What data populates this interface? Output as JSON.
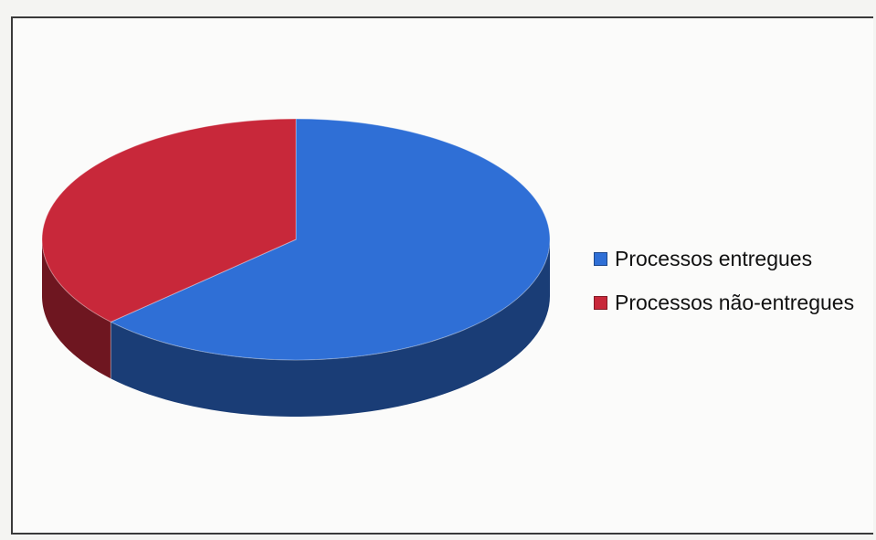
{
  "chart_data": {
    "type": "pie",
    "style": "3d",
    "title": "",
    "slices": [
      {
        "label": "Processos entregues",
        "value": 63,
        "color": "#2f6fd6"
      },
      {
        "label": "Processos não-entregues",
        "value": 37,
        "color": "#c8283a"
      }
    ],
    "legend_position": "right"
  }
}
